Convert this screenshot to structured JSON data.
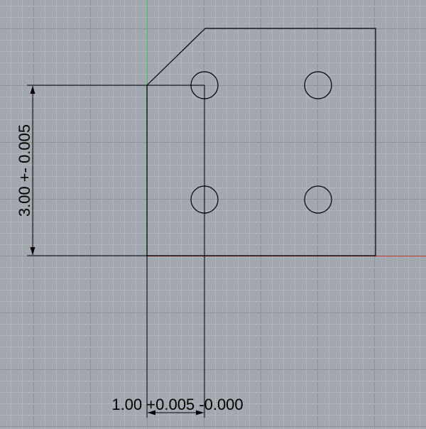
{
  "viewport": {
    "background": "#a3a7af",
    "grid_minor_color": "#b2b6bd",
    "grid_major_color": "#8e9299",
    "x_axis_color": "#c0392b",
    "y_axis_color": "#2ecc40",
    "linework_color": "#000000"
  },
  "dimensions": {
    "vertical_text": "3.00 +- 0.005",
    "horizontal_text": "1.00 +0.005 -0.000"
  },
  "part": {
    "hole_count": 4
  }
}
